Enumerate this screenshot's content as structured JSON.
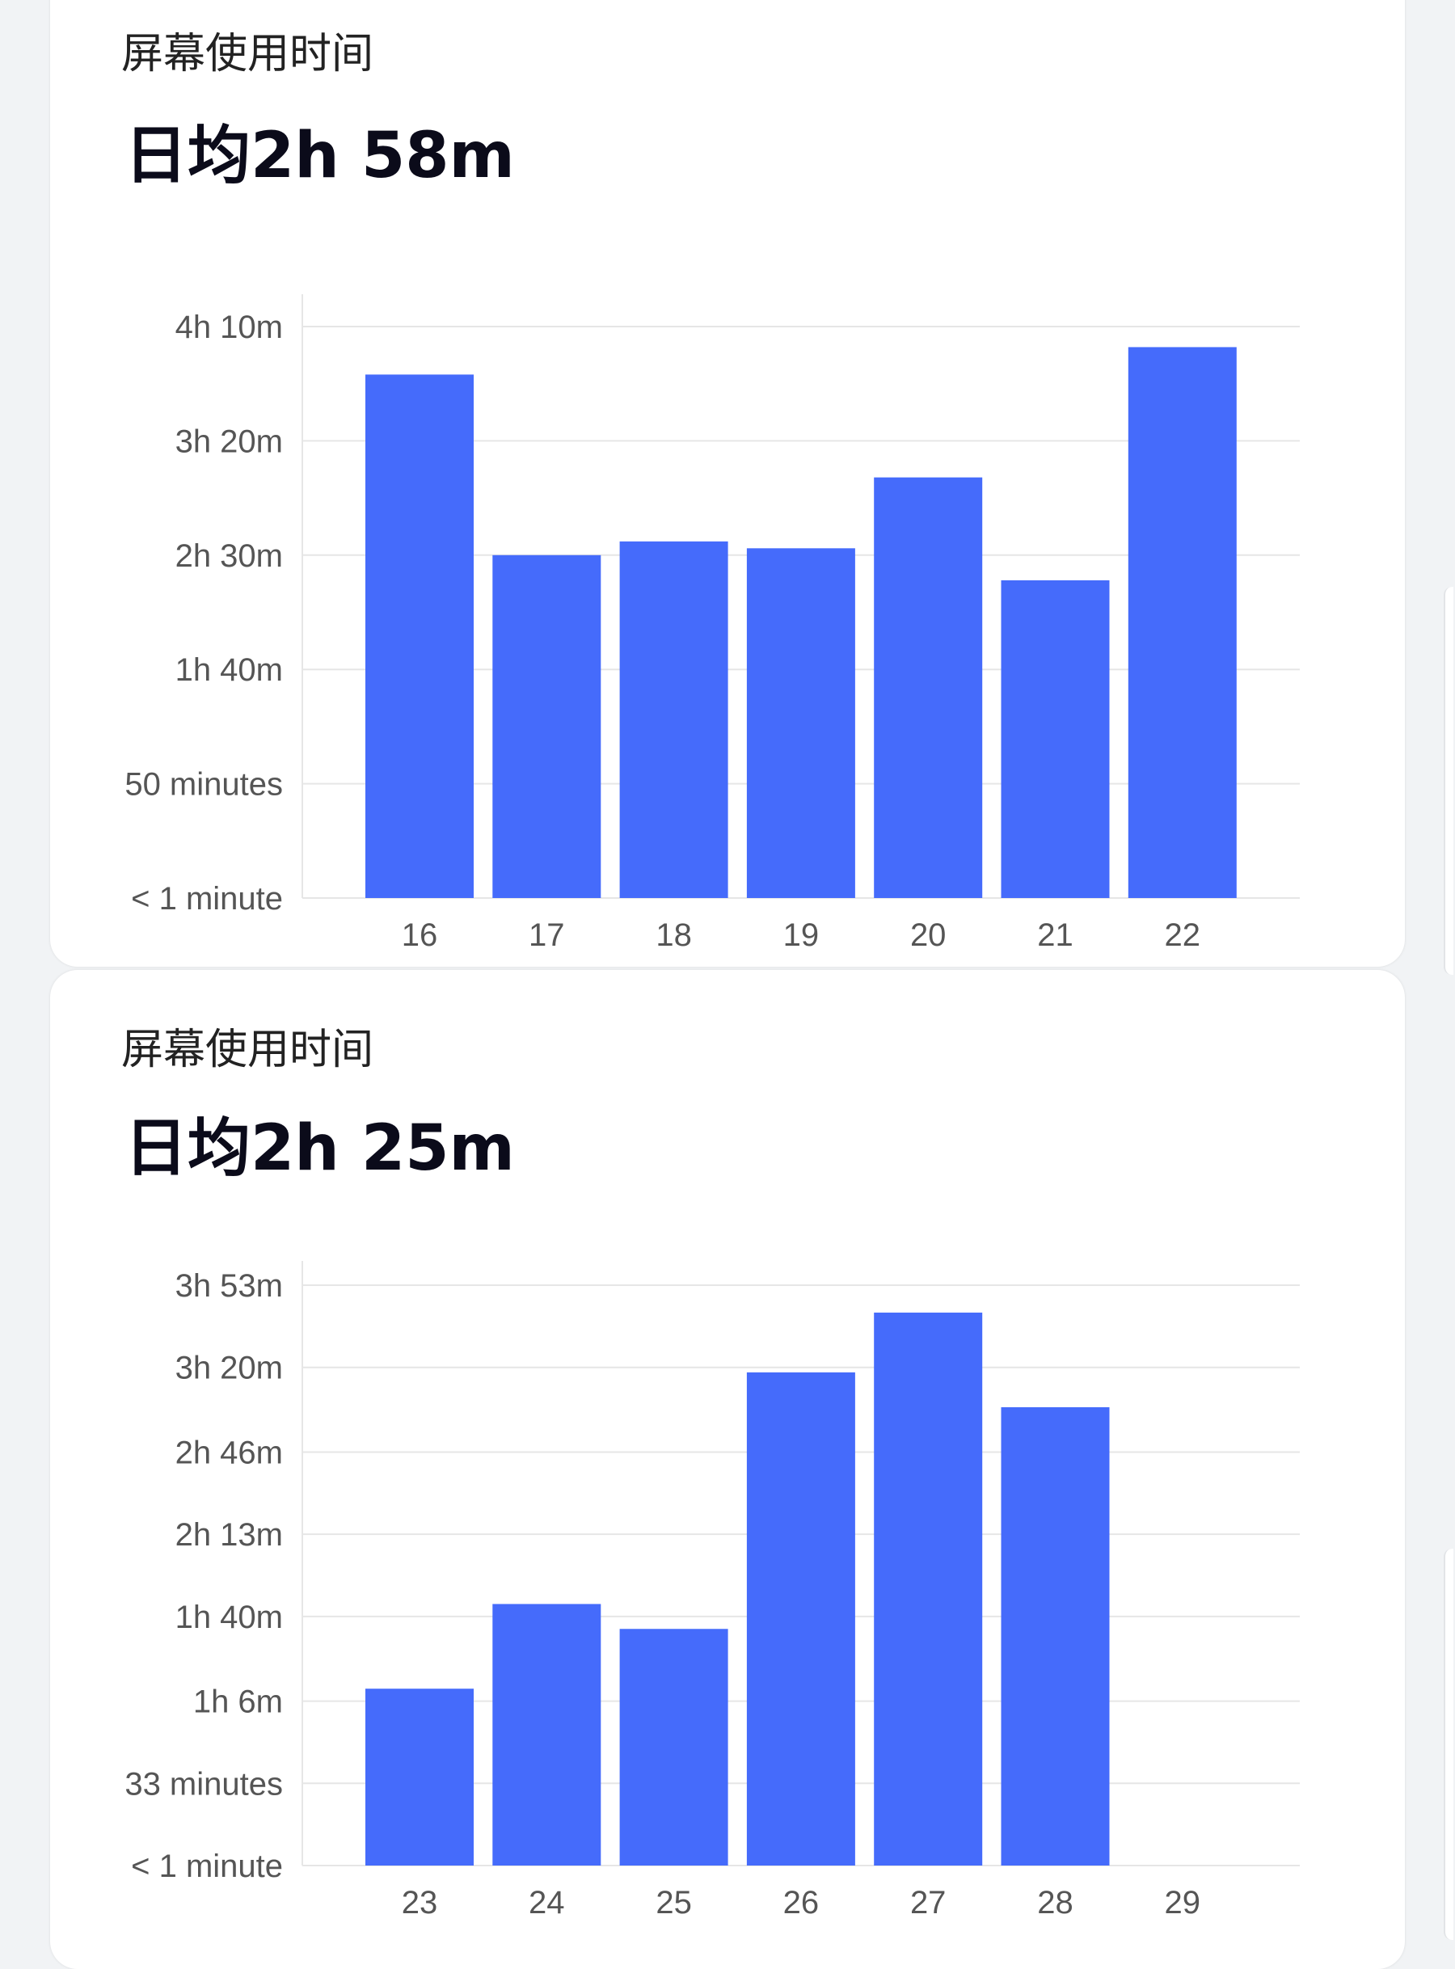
{
  "cards": [
    {
      "title": "屏幕使用时间",
      "average": "日均2h 58m"
    },
    {
      "title": "屏幕使用时间",
      "average": "日均2h 25m"
    }
  ],
  "colors": {
    "bar": "#456bfb",
    "gridline": "#e6e6e6",
    "card_background": "#ffffff",
    "page_background": "#f1f3f5"
  },
  "chart_data": [
    {
      "type": "bar",
      "title": "",
      "xlabel": "",
      "ylabel": "",
      "categories": [
        "16",
        "17",
        "18",
        "19",
        "20",
        "21",
        "22"
      ],
      "values": [
        229,
        150,
        156,
        153,
        184,
        139,
        241
      ],
      "value_unit": "minutes",
      "ylim": [
        0,
        250
      ],
      "yticks": [
        0,
        50,
        100,
        150,
        200,
        250
      ],
      "ytick_labels": [
        "< 1 minute",
        "50 minutes",
        "1h 40m",
        "2h 30m",
        "3h 20m",
        "4h 10m"
      ],
      "grid": true,
      "legend": "none"
    },
    {
      "type": "bar",
      "title": "",
      "xlabel": "",
      "ylabel": "",
      "categories": [
        "23",
        "24",
        "25",
        "26",
        "27",
        "28",
        "29"
      ],
      "values": [
        71,
        105,
        95,
        198,
        222,
        184,
        0
      ],
      "value_unit": "minutes",
      "ylim": [
        0,
        233
      ],
      "yticks": [
        0,
        33,
        66,
        100,
        133,
        166,
        200,
        233
      ],
      "ytick_labels": [
        "< 1 minute",
        "33 minutes",
        "1h 6m",
        "1h 40m",
        "2h 13m",
        "2h 46m",
        "3h 20m",
        "3h 53m"
      ],
      "grid": true,
      "legend": "none"
    }
  ]
}
